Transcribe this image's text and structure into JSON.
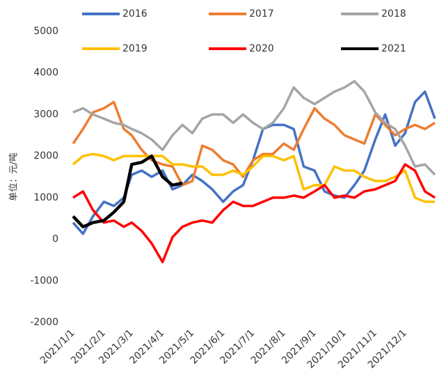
{
  "chart_data": {
    "type": "line",
    "y_label": "单位：元/吨",
    "x": [
      "2021/1/1",
      "2021/1/11",
      "2021/1/21",
      "2021/2/1",
      "2021/2/11",
      "2021/2/21",
      "2021/3/1",
      "2021/3/11",
      "2021/3/21",
      "2021/4/1",
      "2021/4/11",
      "2021/4/21",
      "2021/5/1",
      "2021/5/11",
      "2021/5/21",
      "2021/6/1",
      "2021/6/11",
      "2021/6/21",
      "2021/7/1",
      "2021/7/11",
      "2021/7/21",
      "2021/8/1",
      "2021/8/11",
      "2021/8/21",
      "2021/9/1",
      "2021/9/11",
      "2021/9/21",
      "2021/10/1",
      "2021/10/11",
      "2021/10/21",
      "2021/11/1",
      "2021/11/11",
      "2021/11/21",
      "2021/12/1",
      "2021/12/11",
      "2021/12/21",
      "2021/12/31"
    ],
    "xlim": [
      "2021/1/1",
      "2021/12/31"
    ],
    "xticks": [
      "2021/1/1",
      "2021/2/1",
      "2021/3/1",
      "2021/4/1",
      "2021/5/1",
      "2021/6/1",
      "2021/7/1",
      "2021/8/1",
      "2021/9/1",
      "2021/10/1",
      "2021/11/1",
      "2021/12/1"
    ],
    "ylim": [
      -2000,
      5000
    ],
    "yticks": [
      5000,
      4000,
      3000,
      2000,
      1000,
      0,
      -1000,
      -2000
    ],
    "series": [
      {
        "name": "2016",
        "color": "#4472c4",
        "values": [
          400,
          130,
          550,
          900,
          800,
          1000,
          1550,
          1650,
          1500,
          1650,
          1200,
          1300,
          1550,
          1400,
          1200,
          900,
          1150,
          1300,
          1900,
          2650,
          2750,
          2750,
          2650,
          1750,
          1650,
          1150,
          1050,
          1000,
          1300,
          1650,
          2400,
          3000,
          2250,
          2550,
          3300,
          3550,
          2900
        ]
      },
      {
        "name": "2017",
        "color": "#ed7d31",
        "values": [
          2300,
          2650,
          3050,
          3150,
          3300,
          2650,
          2500,
          2150,
          1900,
          1800,
          1750,
          1300,
          1400,
          2250,
          2150,
          1900,
          1800,
          1500,
          1900,
          2050,
          2050,
          2300,
          2150,
          2650,
          3150,
          2900,
          2750,
          2500,
          2400,
          2300,
          3000,
          2750,
          2500,
          2650,
          2750,
          2650,
          2800
        ]
      },
      {
        "name": "2018",
        "color": "#a5a5a5",
        "values": [
          3050,
          3150,
          3000,
          2900,
          2800,
          2750,
          2650,
          2550,
          2400,
          2150,
          2500,
          2750,
          2550,
          2900,
          3000,
          3000,
          2800,
          3000,
          2800,
          2650,
          2800,
          3150,
          3650,
          3400,
          3250,
          3400,
          3550,
          3650,
          3800,
          3550,
          3050,
          2800,
          2650,
          2250,
          1750,
          1800,
          1550
        ]
      },
      {
        "name": "2019",
        "color": "#ffc000",
        "values": [
          1800,
          2000,
          2050,
          2000,
          1900,
          2000,
          2000,
          2000,
          2000,
          2000,
          1800,
          1800,
          1750,
          1750,
          1550,
          1550,
          1650,
          1550,
          1750,
          2000,
          2000,
          1900,
          2000,
          1200,
          1300,
          1300,
          1750,
          1650,
          1650,
          1500,
          1400,
          1400,
          1500,
          1650,
          1000,
          900,
          900
        ]
      },
      {
        "name": "2020",
        "color": "#ff0000",
        "values": [
          1000,
          1150,
          700,
          400,
          450,
          300,
          400,
          200,
          -100,
          -550,
          50,
          300,
          400,
          450,
          400,
          700,
          900,
          800,
          800,
          900,
          1000,
          1000,
          1050,
          1000,
          1150,
          1300,
          1000,
          1050,
          1000,
          1150,
          1200,
          1300,
          1400,
          1800,
          1650,
          1150,
          1000
        ]
      },
      {
        "name": "2021",
        "color": "#000000",
        "values": [
          550,
          300,
          400,
          450,
          650,
          900,
          1800,
          1850,
          2000,
          1500,
          1300,
          1350,
          null,
          null,
          null,
          null,
          null,
          null,
          null,
          null,
          null,
          null,
          null,
          null,
          null,
          null,
          null,
          null,
          null,
          null,
          null,
          null,
          null,
          null,
          null,
          null,
          null
        ]
      }
    ]
  }
}
